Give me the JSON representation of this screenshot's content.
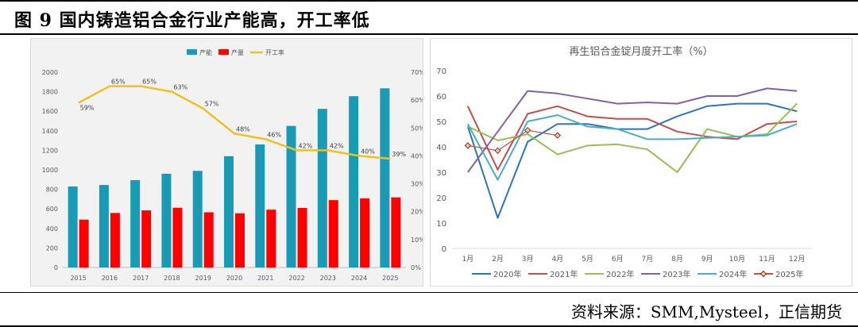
{
  "figure": {
    "title": "图 9 国内铸造铝合金行业产能高，开工率低",
    "source": "资料来源：SMM,Mysteel，正信期货"
  },
  "chart_data": [
    {
      "type": "bar",
      "categories": [
        "2015",
        "2016",
        "2017",
        "2018",
        "2019",
        "2020",
        "2021",
        "2022",
        "2023",
        "2024",
        "2025"
      ],
      "series": [
        {
          "name": "产能",
          "axis": "left",
          "type": "bar",
          "color": "#1a9bb5",
          "values": [
            830,
            845,
            895,
            960,
            990,
            1140,
            1260,
            1450,
            1625,
            1755,
            1835
          ]
        },
        {
          "name": "产量",
          "axis": "left",
          "type": "bar",
          "color": "#ff0000",
          "values": [
            490,
            558,
            585,
            612,
            565,
            555,
            592,
            610,
            690,
            708,
            718
          ]
        },
        {
          "name": "开工率",
          "axis": "right",
          "type": "line",
          "color": "#f0c020",
          "values": [
            59,
            65,
            65,
            63,
            57,
            48,
            46,
            42,
            42,
            40,
            39
          ],
          "labels": [
            "59%",
            "65%",
            "65%",
            "63%",
            "57%",
            "48%",
            "46%",
            "42%",
            "42%",
            "40%",
            "39%"
          ]
        }
      ],
      "y_left": {
        "min": 0,
        "max": 2000,
        "ticks": [
          "0",
          "200",
          "400",
          "600",
          "800",
          "1000",
          "1200",
          "1400",
          "1600",
          "1800",
          "2000"
        ]
      },
      "y_right": {
        "min": 0,
        "max": 70,
        "ticks": [
          "0%",
          "10%",
          "20%",
          "30%",
          "40%",
          "50%",
          "60%",
          "70%"
        ]
      },
      "legend_position": "top-center",
      "grid": false
    },
    {
      "type": "line",
      "title": "再生铝合金锭月度开工率（%）",
      "categories": [
        "1月",
        "2月",
        "3月",
        "4月",
        "5月",
        "6月",
        "7月",
        "8月",
        "9月",
        "10月",
        "11月",
        "12月"
      ],
      "series": [
        {
          "name": "2020年",
          "color": "#2e75b6",
          "values": [
            48,
            12,
            42,
            49,
            49,
            47,
            47,
            52,
            56,
            57,
            57,
            54
          ]
        },
        {
          "name": "2021年",
          "color": "#c0504d",
          "values": [
            56,
            31,
            53,
            56,
            52,
            51,
            51,
            46,
            44,
            43,
            49,
            50
          ]
        },
        {
          "name": "2022年",
          "color": "#9bbb59",
          "values": [
            48,
            42.5,
            45,
            37,
            40.5,
            41,
            39,
            30,
            47,
            44,
            45,
            57
          ]
        },
        {
          "name": "2023年",
          "color": "#8064a2",
          "values": [
            30,
            46,
            62,
            61,
            59,
            57,
            57.5,
            57,
            60,
            60,
            63,
            62
          ]
        },
        {
          "name": "2024年",
          "color": "#4bacc6",
          "values": [
            49,
            27,
            50,
            52.5,
            48,
            47,
            43,
            43,
            43.5,
            44,
            44.5,
            49
          ]
        },
        {
          "name": "2025年",
          "color": "#c0504d",
          "marker": "diamond",
          "values": [
            40.5,
            38.5,
            46.5,
            44.5,
            null,
            null,
            null,
            null,
            null,
            null,
            null,
            null
          ]
        }
      ],
      "y": {
        "min": 0,
        "max": 70,
        "ticks": [
          "0",
          "10",
          "20",
          "30",
          "40",
          "50",
          "60",
          "70"
        ]
      },
      "legend_position": "bottom",
      "grid": false
    }
  ]
}
